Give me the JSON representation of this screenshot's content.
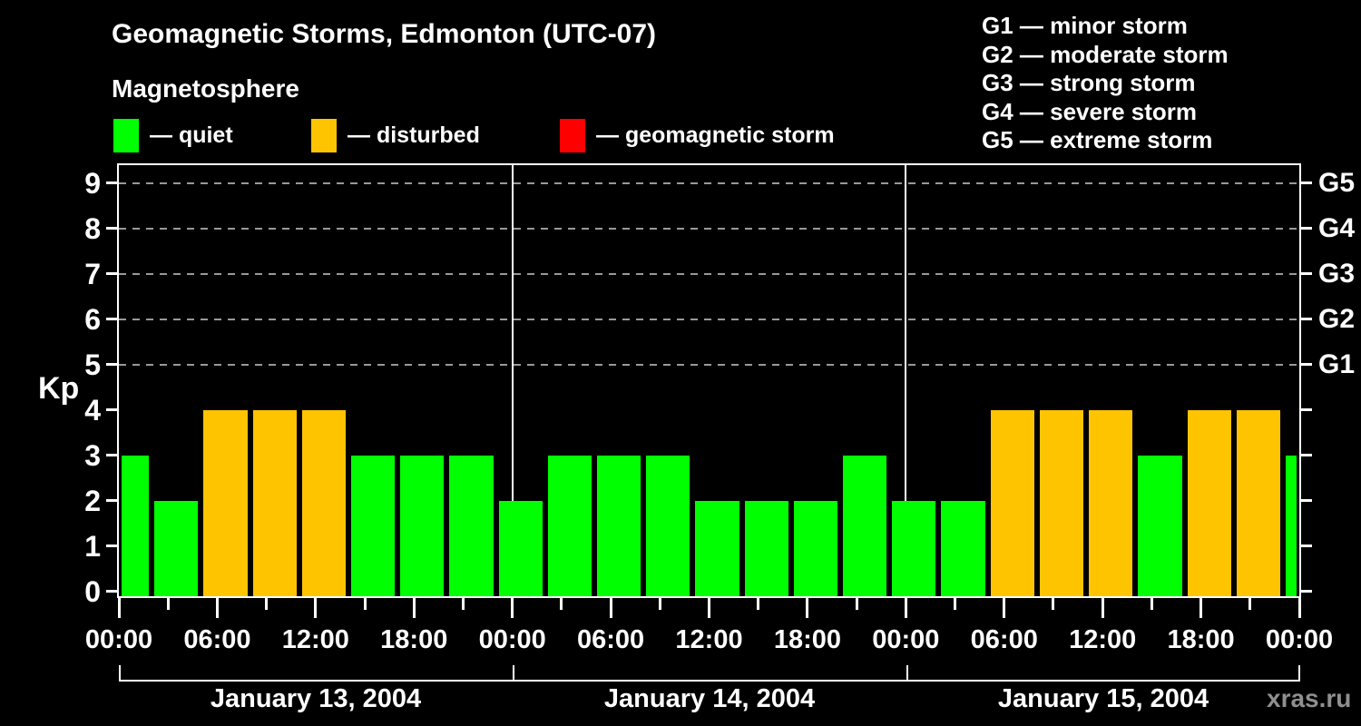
{
  "header": {
    "title": "Geomagnetic Storms, Edmonton (UTC-07)",
    "subtitle": "Magnetosphere"
  },
  "legend": {
    "items": [
      {
        "status": "quiet",
        "label": "— quiet",
        "color": "#00FF00"
      },
      {
        "status": "disturbed",
        "label": "— disturbed",
        "color": "#FFC400"
      },
      {
        "status": "storm",
        "label": "— geomagnetic storm",
        "color": "#FF0000"
      }
    ]
  },
  "g_scale_legend": [
    {
      "code": "G1",
      "desc": "minor storm",
      "kp": 5
    },
    {
      "code": "G2",
      "desc": "moderate storm",
      "kp": 6
    },
    {
      "code": "G3",
      "desc": "strong storm",
      "kp": 7
    },
    {
      "code": "G4",
      "desc": "severe storm",
      "kp": 8
    },
    {
      "code": "G5",
      "desc": "extreme storm",
      "kp": 9
    }
  ],
  "watermark": "xras.ru",
  "chart_data": {
    "type": "bar",
    "title": "Geomagnetic Storms, Edmonton (UTC-07)",
    "subtitle": "Magnetosphere",
    "ylabel": "Kp",
    "y_ticks": [
      0,
      1,
      2,
      3,
      4,
      5,
      6,
      7,
      8,
      9
    ],
    "y_range": [
      -0.1,
      9.4
    ],
    "gridlines_kp": [
      5,
      6,
      7,
      8,
      9
    ],
    "x_range_hours": [
      0,
      72
    ],
    "x_minor_tick_every_hours": 3,
    "x_major_tick_every_hours": 6,
    "x_tick_labels_by_hour_of_day": {
      "0": "00:00",
      "6": "06:00",
      "12": "12:00",
      "18": "18:00"
    },
    "days": [
      "January 13, 2004",
      "January 14, 2004",
      "January 15, 2004"
    ],
    "day_boundary_hours": [
      24,
      48
    ],
    "bar_interval_hours": 3,
    "bars": [
      {
        "start_hour": -1,
        "kp": 3,
        "status": "quiet"
      },
      {
        "start_hour": 2,
        "kp": 2,
        "status": "quiet"
      },
      {
        "start_hour": 5,
        "kp": 4,
        "status": "disturbed"
      },
      {
        "start_hour": 8,
        "kp": 4,
        "status": "disturbed"
      },
      {
        "start_hour": 11,
        "kp": 4,
        "status": "disturbed"
      },
      {
        "start_hour": 14,
        "kp": 3,
        "status": "quiet"
      },
      {
        "start_hour": 17,
        "kp": 3,
        "status": "quiet"
      },
      {
        "start_hour": 20,
        "kp": 3,
        "status": "quiet"
      },
      {
        "start_hour": 23,
        "kp": 2,
        "status": "quiet"
      },
      {
        "start_hour": 26,
        "kp": 3,
        "status": "quiet"
      },
      {
        "start_hour": 29,
        "kp": 3,
        "status": "quiet"
      },
      {
        "start_hour": 32,
        "kp": 3,
        "status": "quiet"
      },
      {
        "start_hour": 35,
        "kp": 2,
        "status": "quiet"
      },
      {
        "start_hour": 38,
        "kp": 2,
        "status": "quiet"
      },
      {
        "start_hour": 41,
        "kp": 2,
        "status": "quiet"
      },
      {
        "start_hour": 44,
        "kp": 3,
        "status": "quiet"
      },
      {
        "start_hour": 47,
        "kp": 2,
        "status": "quiet"
      },
      {
        "start_hour": 50,
        "kp": 2,
        "status": "quiet"
      },
      {
        "start_hour": 53,
        "kp": 4,
        "status": "disturbed"
      },
      {
        "start_hour": 56,
        "kp": 4,
        "status": "disturbed"
      },
      {
        "start_hour": 59,
        "kp": 4,
        "status": "disturbed"
      },
      {
        "start_hour": 62,
        "kp": 3,
        "status": "quiet"
      },
      {
        "start_hour": 65,
        "kp": 4,
        "status": "disturbed"
      },
      {
        "start_hour": 68,
        "kp": 4,
        "status": "disturbed"
      },
      {
        "start_hour": 71,
        "kp": 3,
        "status": "quiet"
      }
    ],
    "colors": {
      "quiet": "#00FF00",
      "disturbed": "#FFC400",
      "storm": "#FF0000",
      "gridline": "#999999",
      "axis": "#FFFFFF",
      "background": "#000000",
      "watermark": "#8F8F8F"
    }
  }
}
